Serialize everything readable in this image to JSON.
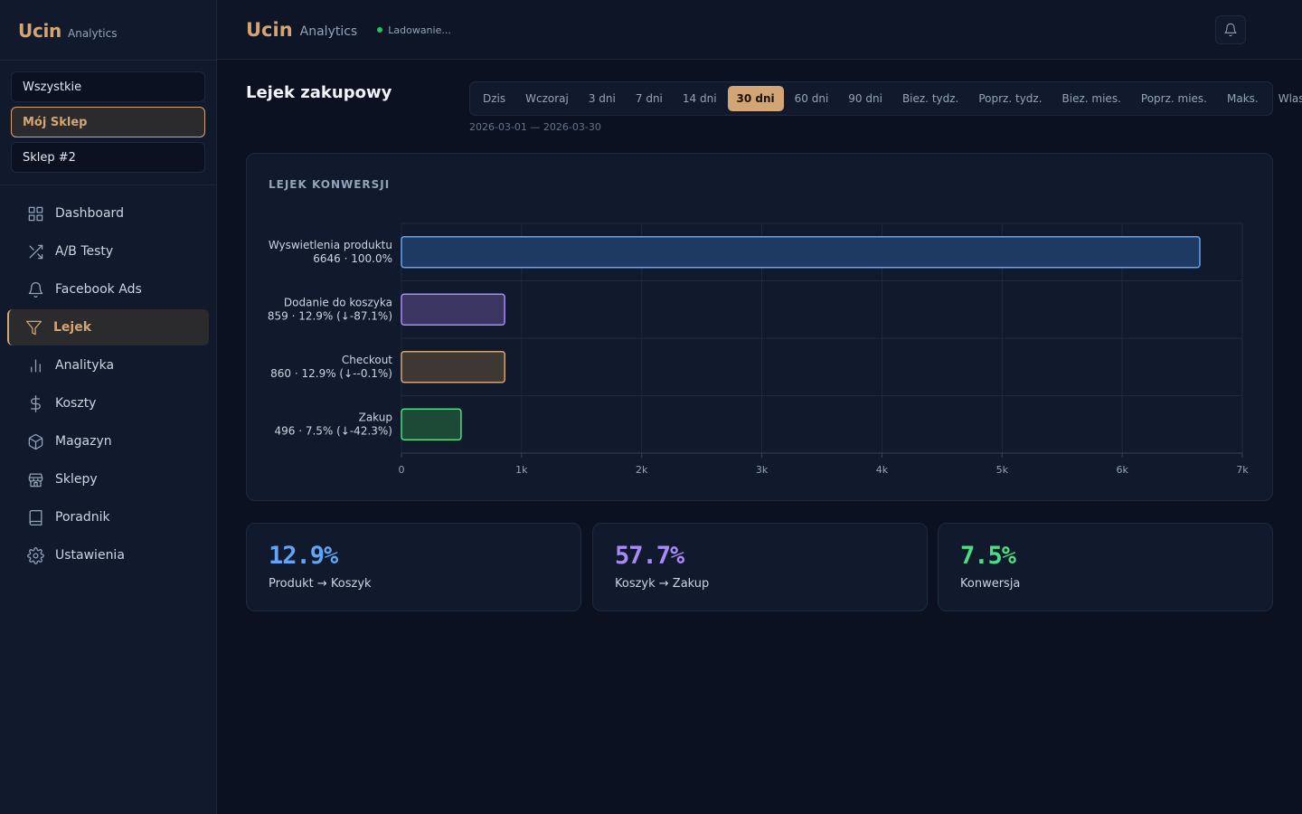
{
  "brand": {
    "name": "Ucin",
    "sub": "Analytics"
  },
  "stores": [
    {
      "label": "Wszystkie",
      "active": false
    },
    {
      "label": "Mój Sklep",
      "active": true
    },
    {
      "label": "Sklep #2",
      "active": false
    }
  ],
  "nav": [
    {
      "label": "Dashboard",
      "icon": "grid-icon"
    },
    {
      "label": "A/B Testy",
      "icon": "shuffle-icon"
    },
    {
      "label": "Facebook Ads",
      "icon": "bell-icon"
    },
    {
      "label": "Lejek",
      "icon": "filter-icon",
      "active": true
    },
    {
      "label": "Analityka",
      "icon": "bar-chart-icon"
    },
    {
      "label": "Koszty",
      "icon": "dollar-icon"
    },
    {
      "label": "Magazyn",
      "icon": "box-icon"
    },
    {
      "label": "Sklepy",
      "icon": "store-icon"
    },
    {
      "label": "Poradnik",
      "icon": "book-icon"
    },
    {
      "label": "Ustawienia",
      "icon": "gear-icon"
    }
  ],
  "header": {
    "title": "Ucin",
    "sub": "Analytics",
    "status": "Ladowanie..."
  },
  "page": {
    "title": "Lejek zakupowy",
    "date_range": "2026-03-01 — 2026-03-30"
  },
  "ranges": [
    "Dzis",
    "Wczoraj",
    "3 dni",
    "7 dni",
    "14 dni",
    "30 dni",
    "60 dni",
    "90 dni",
    "Biez. tydz.",
    "Poprz. tydz.",
    "Biez. mies.",
    "Poprz. mies.",
    "Maks.",
    "Wlasny"
  ],
  "active_range": "30 dni",
  "colors": {
    "accent": "#d4a574",
    "blue": "#60a5fa",
    "purple": "#a78bfa",
    "tan": "#d4a574",
    "green": "#4ade80"
  },
  "chart_data": {
    "type": "bar",
    "orientation": "horizontal",
    "title": "LEJEK KONWERSJI",
    "categories": [
      "Wyswietlenia produktu",
      "Dodanie do koszyka",
      "Checkout",
      "Zakup"
    ],
    "values": [
      6646,
      859,
      860,
      496
    ],
    "labels": [
      "6646 · 100.0%",
      "859 · 12.9% (↓-87.1%)",
      "860 · 12.9% (↓--0.1%)",
      "496 · 7.5% (↓-42.3%)"
    ],
    "xlim": [
      0,
      7000
    ],
    "xticks": [
      "0",
      "1k",
      "2k",
      "3k",
      "4k",
      "5k",
      "6k",
      "7k"
    ],
    "grid": true,
    "bar_colors": [
      "#60a5fa",
      "#a78bfa",
      "#d4a574",
      "#4ade80"
    ]
  },
  "kpis": [
    {
      "value": "12.9%",
      "label": "Produkt → Koszyk",
      "color": "#60a5fa"
    },
    {
      "value": "57.7%",
      "label": "Koszyk → Zakup",
      "color": "#a78bfa"
    },
    {
      "value": "7.5%",
      "label": "Konwersja",
      "color": "#4ade80"
    }
  ]
}
